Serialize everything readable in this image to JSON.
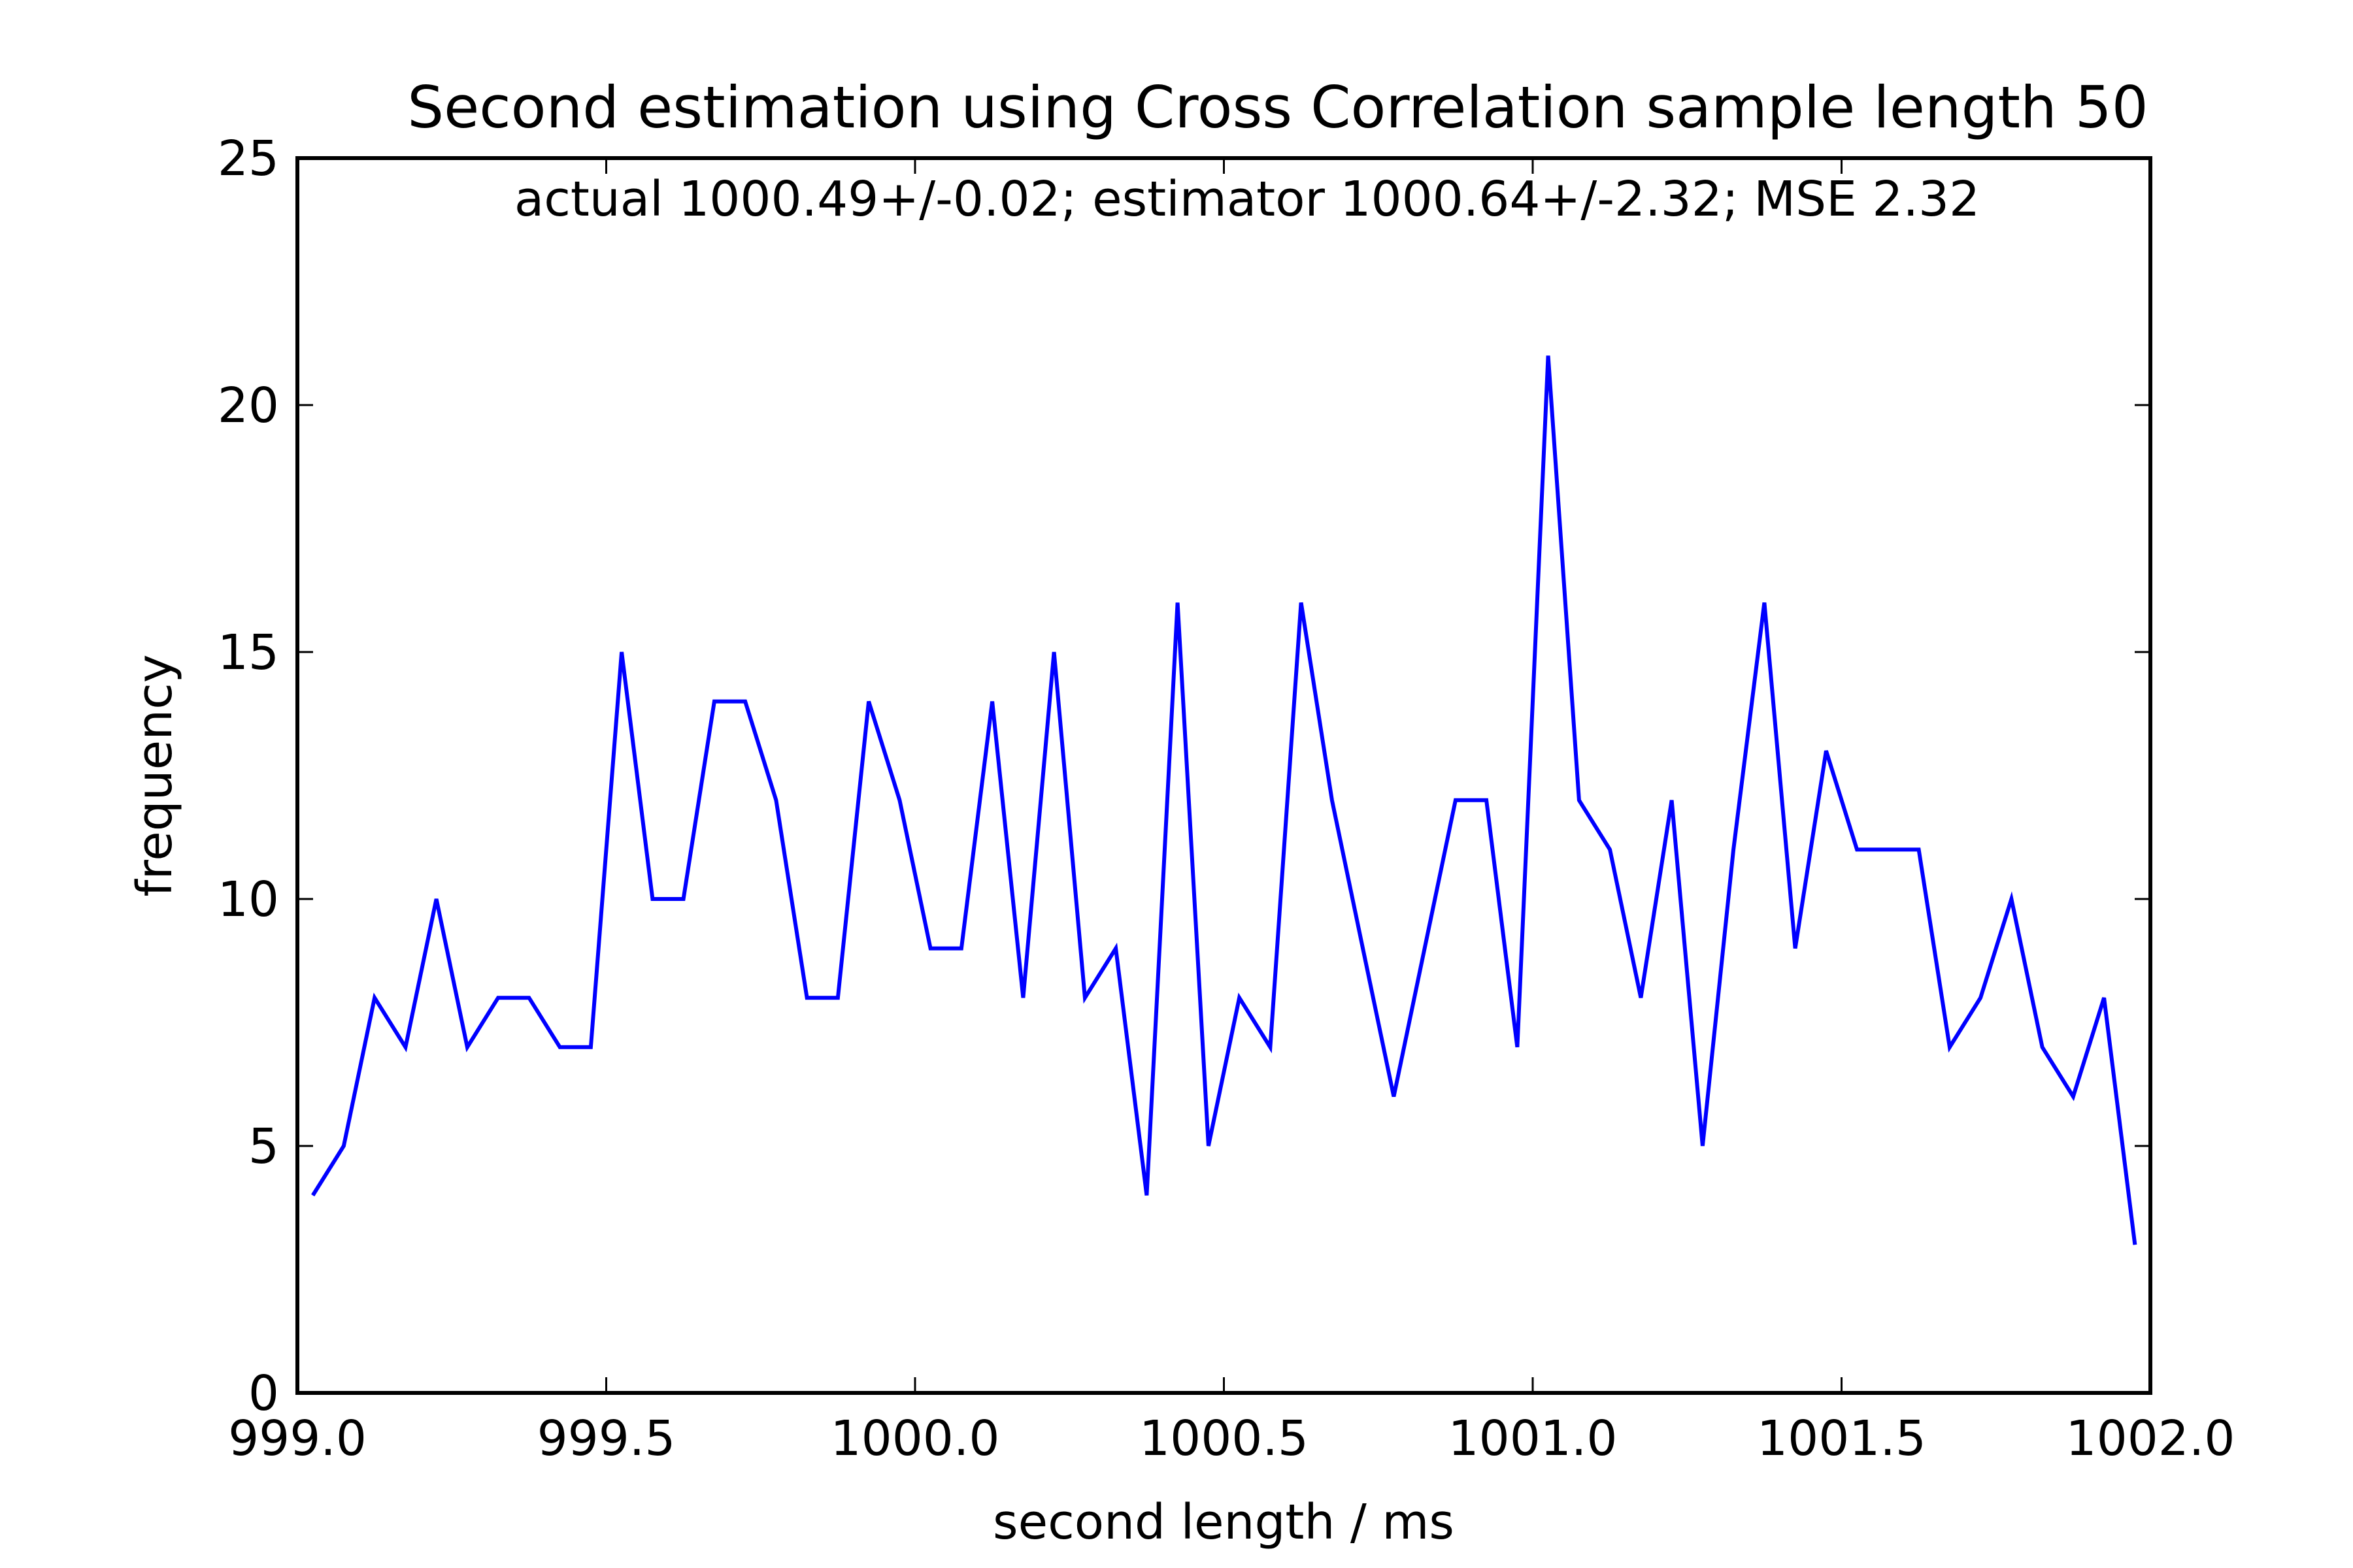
{
  "chart_data": {
    "type": "line",
    "title": "Second estimation using Cross Correlation sample length 50",
    "annotation": "actual 1000.49+/-0.02;  estimator 1000.64+/-2.32;  MSE 2.32",
    "xlabel": "second length / ms",
    "ylabel": "frequency",
    "xlim": [
      999.0,
      1002.0
    ],
    "ylim": [
      0,
      25
    ],
    "xticks": [
      999.0,
      999.5,
      1000.0,
      1000.5,
      1001.0,
      1001.5,
      1002.0
    ],
    "xtick_labels": [
      "999.0",
      "999.5",
      "1000.0",
      "1000.5",
      "1001.0",
      "1001.5",
      "1002.0"
    ],
    "yticks": [
      0,
      5,
      10,
      15,
      20,
      25
    ],
    "ytick_labels": [
      "0",
      "5",
      "10",
      "15",
      "20",
      "25"
    ],
    "grid": false,
    "series": [
      {
        "color": "#0000ff",
        "x": [
          999.025,
          999.075,
          999.125,
          999.175,
          999.225,
          999.275,
          999.325,
          999.375,
          999.425,
          999.475,
          999.525,
          999.575,
          999.625,
          999.675,
          999.725,
          999.775,
          999.825,
          999.875,
          999.925,
          999.975,
          1000.025,
          1000.075,
          1000.125,
          1000.175,
          1000.225,
          1000.275,
          1000.325,
          1000.375,
          1000.425,
          1000.475,
          1000.525,
          1000.575,
          1000.625,
          1000.675,
          1000.725,
          1000.775,
          1000.825,
          1000.875,
          1000.925,
          1000.975,
          1001.025,
          1001.075,
          1001.125,
          1001.175,
          1001.225,
          1001.275,
          1001.325,
          1001.375,
          1001.425,
          1001.475,
          1001.525,
          1001.575,
          1001.625,
          1001.675,
          1001.725,
          1001.775,
          1001.825,
          1001.875,
          1001.925,
          1001.975
        ],
        "y": [
          4,
          5,
          8,
          7,
          10,
          7,
          8,
          8,
          7,
          7,
          15,
          10,
          10,
          14,
          14,
          12,
          8,
          8,
          14,
          12,
          9,
          9,
          14,
          8,
          15,
          8,
          9,
          4,
          16,
          5,
          8,
          7,
          16,
          12,
          9,
          6,
          9,
          12,
          12,
          7,
          21,
          12,
          11,
          8,
          12,
          5,
          11,
          16,
          9,
          13,
          11,
          11,
          11,
          7,
          8,
          10,
          7,
          6,
          8,
          3
        ]
      }
    ]
  }
}
